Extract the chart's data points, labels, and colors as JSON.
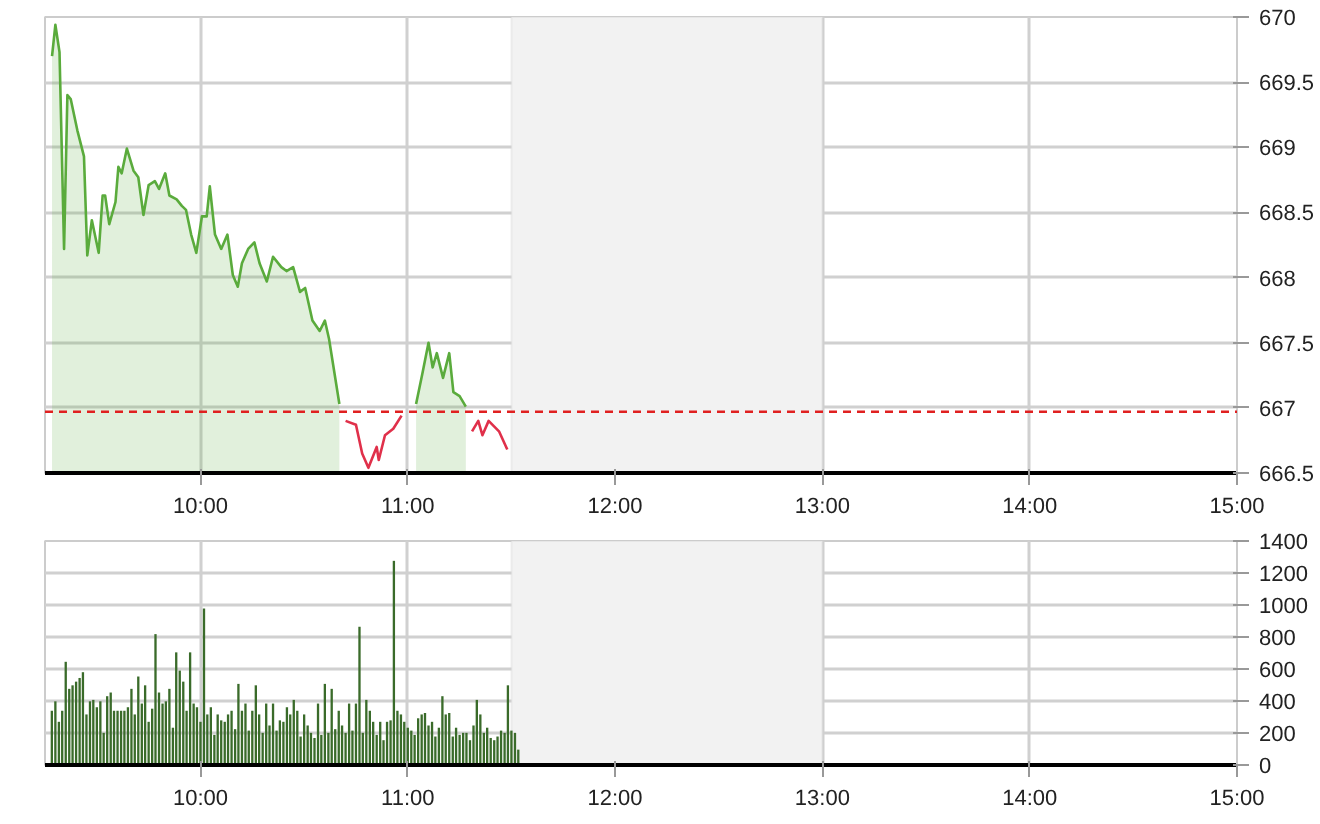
{
  "chart_data": [
    {
      "type": "line",
      "xlim": [
        9.25,
        15
      ],
      "ylim": [
        666.5,
        670
      ],
      "xticks": [
        {
          "value": 10,
          "label": "10:00"
        },
        {
          "value": 11,
          "label": "11:00"
        },
        {
          "value": 12,
          "label": "12:00"
        },
        {
          "value": 13,
          "label": "13:00"
        },
        {
          "value": 14,
          "label": "14:00"
        },
        {
          "value": 15,
          "label": "15:00"
        }
      ],
      "yticks": [
        666.5,
        667,
        667.5,
        668,
        668.5,
        669,
        669.5,
        670
      ],
      "grid": true,
      "series": [
        {
          "type": "area",
          "color": "#5aab3c",
          "x": [
            9.284,
            9.3,
            9.32,
            9.342,
            9.358,
            9.374,
            9.406,
            9.438,
            9.454,
            9.476,
            9.509,
            9.528,
            9.54,
            9.56,
            9.59,
            9.604,
            9.62,
            9.645,
            9.677,
            9.7,
            9.725,
            9.75,
            9.78,
            9.8,
            9.83,
            9.85,
            9.885,
            9.91,
            9.93,
            9.955,
            9.98,
            10.007,
            10.03,
            10.045,
            10.07,
            10.1,
            10.13,
            10.156,
            10.18,
            10.2,
            10.23,
            10.26,
            10.285,
            10.32,
            10.35,
            10.39,
            10.415,
            10.447,
            10.48,
            10.505,
            10.54,
            10.575,
            10.6,
            10.62,
            10.67,
            10.8,
            11.04,
            11.07,
            11.1,
            11.12,
            11.14,
            11.17,
            11.2,
            11.22,
            11.25,
            11.28
          ],
          "values": [
            669.7,
            669.94,
            669.73,
            668.22,
            669.4,
            669.37,
            669.13,
            668.93,
            668.17,
            668.44,
            668.19,
            668.63,
            668.63,
            668.41,
            668.58,
            668.85,
            668.8,
            668.99,
            668.82,
            668.77,
            668.48,
            668.71,
            668.74,
            668.68,
            668.8,
            668.63,
            668.6,
            668.55,
            668.52,
            668.33,
            668.19,
            668.47,
            668.47,
            668.7,
            668.33,
            668.22,
            668.33,
            668.02,
            667.93,
            668.11,
            668.22,
            668.27,
            668.11,
            667.97,
            668.16,
            668.08,
            668.05,
            668.08,
            667.89,
            667.92,
            667.67,
            667.59,
            667.67,
            667.53,
            667.03,
            null,
            667.03,
            667.26,
            667.5,
            667.31,
            667.42,
            667.23,
            667.42,
            667.12,
            667.09,
            667.01
          ]
        },
        {
          "type": "line",
          "color": "#e0304a",
          "x": [
            10.7,
            10.75,
            10.78,
            10.81,
            10.85,
            10.86,
            10.89,
            10.93,
            10.97,
            11.1,
            11.31,
            11.34,
            11.36,
            11.39,
            11.44,
            11.48
          ],
          "values": [
            666.9,
            666.87,
            666.65,
            666.54,
            666.7,
            666.6,
            666.79,
            666.84,
            666.94,
            null,
            666.82,
            666.9,
            666.79,
            666.9,
            666.82,
            666.68
          ]
        }
      ],
      "ref_lines": [
        {
          "axis": "y",
          "value": 666.97,
          "color": "#e02020",
          "line_style": "dashed"
        }
      ],
      "bands": [
        {
          "axis": "x",
          "from": 11.5,
          "to": 13,
          "color": "#f2f2f2"
        }
      ]
    },
    {
      "type": "bar",
      "xlim": [
        9.25,
        15
      ],
      "ylim": [
        0,
        1400
      ],
      "xticks": [
        {
          "value": 10,
          "label": "10:00"
        },
        {
          "value": 11,
          "label": "11:00"
        },
        {
          "value": 12,
          "label": "12:00"
        },
        {
          "value": 13,
          "label": "13:00"
        },
        {
          "value": 14,
          "label": "14:00"
        },
        {
          "value": 15,
          "label": "15:00"
        }
      ],
      "yticks": [
        0,
        200,
        400,
        600,
        800,
        1000,
        1200,
        1400
      ],
      "grid": true,
      "x": [
        9.283,
        9.3,
        9.317,
        9.333,
        9.35,
        9.367,
        9.383,
        9.4,
        9.417,
        9.433,
        9.45,
        9.467,
        9.483,
        9.5,
        9.517,
        9.533,
        9.55,
        9.567,
        9.583,
        9.6,
        9.617,
        9.633,
        9.65,
        9.667,
        9.683,
        9.7,
        9.717,
        9.733,
        9.75,
        9.767,
        9.783,
        9.8,
        9.817,
        9.833,
        9.85,
        9.867,
        9.883,
        9.9,
        9.917,
        9.933,
        9.95,
        9.967,
        9.983,
        10,
        10.017,
        10.033,
        10.05,
        10.067,
        10.083,
        10.1,
        10.117,
        10.133,
        10.15,
        10.167,
        10.183,
        10.2,
        10.217,
        10.233,
        10.25,
        10.267,
        10.283,
        10.3,
        10.317,
        10.333,
        10.35,
        10.367,
        10.383,
        10.4,
        10.417,
        10.433,
        10.45,
        10.467,
        10.483,
        10.5,
        10.517,
        10.533,
        10.55,
        10.567,
        10.583,
        10.6,
        10.617,
        10.633,
        10.65,
        10.667,
        10.683,
        10.7,
        10.717,
        10.733,
        10.75,
        10.767,
        10.783,
        10.8,
        10.817,
        10.833,
        10.85,
        10.867,
        10.883,
        10.9,
        10.917,
        10.933,
        10.95,
        10.967,
        10.983,
        11,
        11.017,
        11.033,
        11.05,
        11.067,
        11.083,
        11.1,
        11.117,
        11.133,
        11.15,
        11.167,
        11.183,
        11.2,
        11.217,
        11.233,
        11.25,
        11.267,
        11.283,
        11.3,
        11.317,
        11.333,
        11.35,
        11.367,
        11.383,
        11.4,
        11.417,
        11.433,
        11.45,
        11.467,
        11.483,
        11.5,
        11.517,
        11.533
      ],
      "series": [
        {
          "color": "#3a6b2a",
          "values": [
            339,
            398,
            270,
            339,
            645,
            476,
            498,
            521,
            544,
            580,
            316,
            398,
            407,
            361,
            398,
            201,
            430,
            453,
            339,
            339,
            339,
            339,
            361,
            476,
            316,
            553,
            384,
            498,
            270,
            352,
            818,
            453,
            384,
            398,
            476,
            233,
            704,
            590,
            521,
            339,
            704,
            384,
            361,
            270,
            978,
            316,
            361,
            188,
            316,
            279,
            270,
            316,
            339,
            224,
            507,
            339,
            384,
            215,
            339,
            498,
            316,
            201,
            384,
            247,
            384,
            215,
            279,
            270,
            361,
            316,
            407,
            339,
            178,
            316,
            247,
            201,
            169,
            384,
            188,
            507,
            201,
            476,
            224,
            339,
            247,
            201,
            384,
            215,
            384,
            864,
            201,
            407,
            339,
            270,
            188,
            270,
            155,
            270,
            279,
            1276,
            339,
            316,
            270,
            233,
            215,
            188,
            292,
            316,
            325,
            247,
            270,
            178,
            233,
            430,
            316,
            325,
            178,
            233,
            188,
            201,
            201,
            155,
            247,
            407,
            316,
            201,
            233,
            169,
            155,
            178,
            215,
            201,
            498,
            215,
            201,
            96
          ]
        }
      ],
      "bands": [
        {
          "axis": "x",
          "from": 11.5,
          "to": 13,
          "color": "#f2f2f2"
        }
      ]
    }
  ]
}
